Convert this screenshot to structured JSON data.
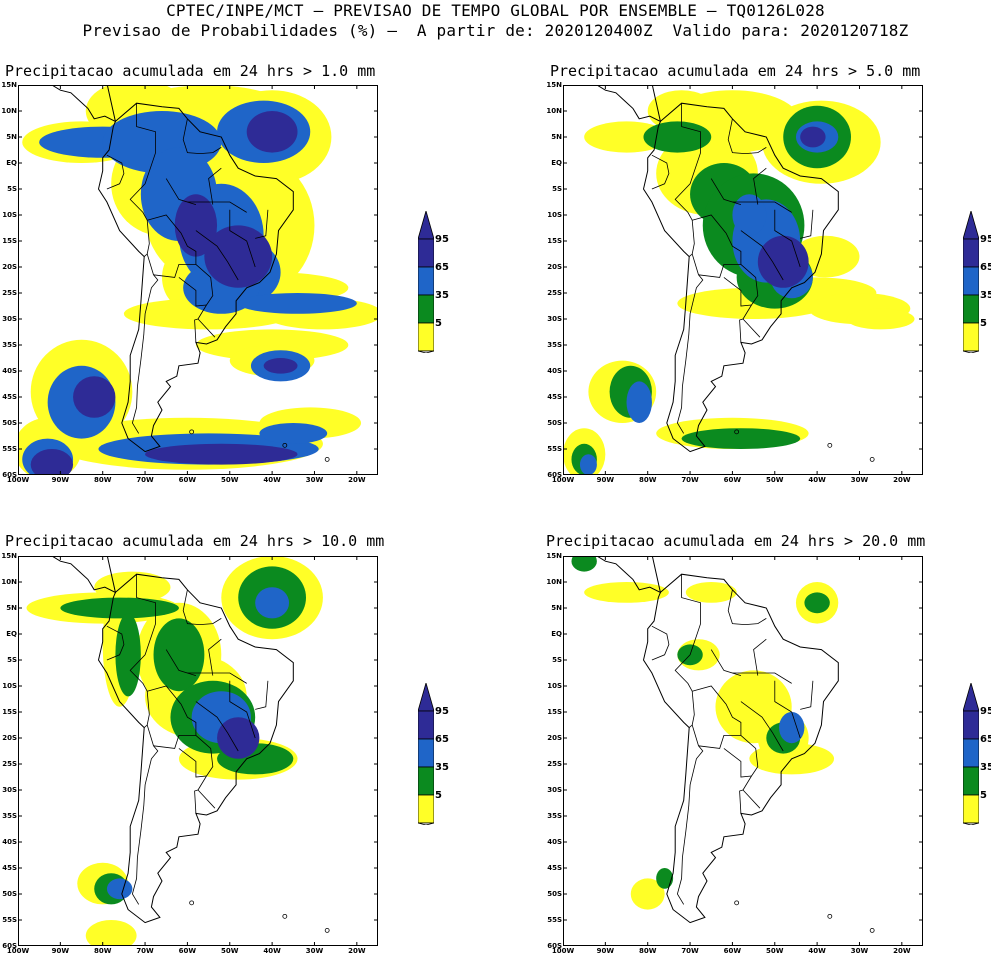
{
  "header": {
    "line1": "CPTEC/INPE/MCT — PREVISAO DE TEMPO GLOBAL POR ENSEMBLE — TQ0126L028",
    "line2": "Previsao de Probabilidades (%) —  A partir de: 2020120400Z  Valido para: 2020120718Z"
  },
  "axes": {
    "lat_ticks": [
      "15N",
      "10N",
      "5N",
      "EQ",
      "5S",
      "10S",
      "15S",
      "20S",
      "25S",
      "30S",
      "35S",
      "40S",
      "45S",
      "50S",
      "55S",
      "60S"
    ],
    "lon_ticks": [
      "100W",
      "90W",
      "80W",
      "70W",
      "60W",
      "50W",
      "40W",
      "30W",
      "20W"
    ]
  },
  "legend": {
    "levels": [
      "95",
      "65",
      "35",
      "5"
    ],
    "colors": {
      "c95": "#2e2b96",
      "c65": "#1f65c8",
      "c35": "#0b8a1f",
      "c5": "#ffff27",
      "land": "#ffffff",
      "border": "#000000"
    }
  },
  "panels": [
    {
      "id": "p1",
      "title": "Precipitacao acumulada em 24 hrs > 1.0 mm",
      "threshold_mm": 1.0
    },
    {
      "id": "p2",
      "title": "Precipitacao acumulada em 24 hrs > 5.0 mm",
      "threshold_mm": 5.0
    },
    {
      "id": "p3",
      "title": "Precipitacao acumulada em 24 hrs > 10.0 mm",
      "threshold_mm": 10.0
    },
    {
      "id": "p4",
      "title": "Precipitacao acumulada em 24 hrs > 20.0 mm",
      "threshold_mm": 20.0
    }
  ]
}
